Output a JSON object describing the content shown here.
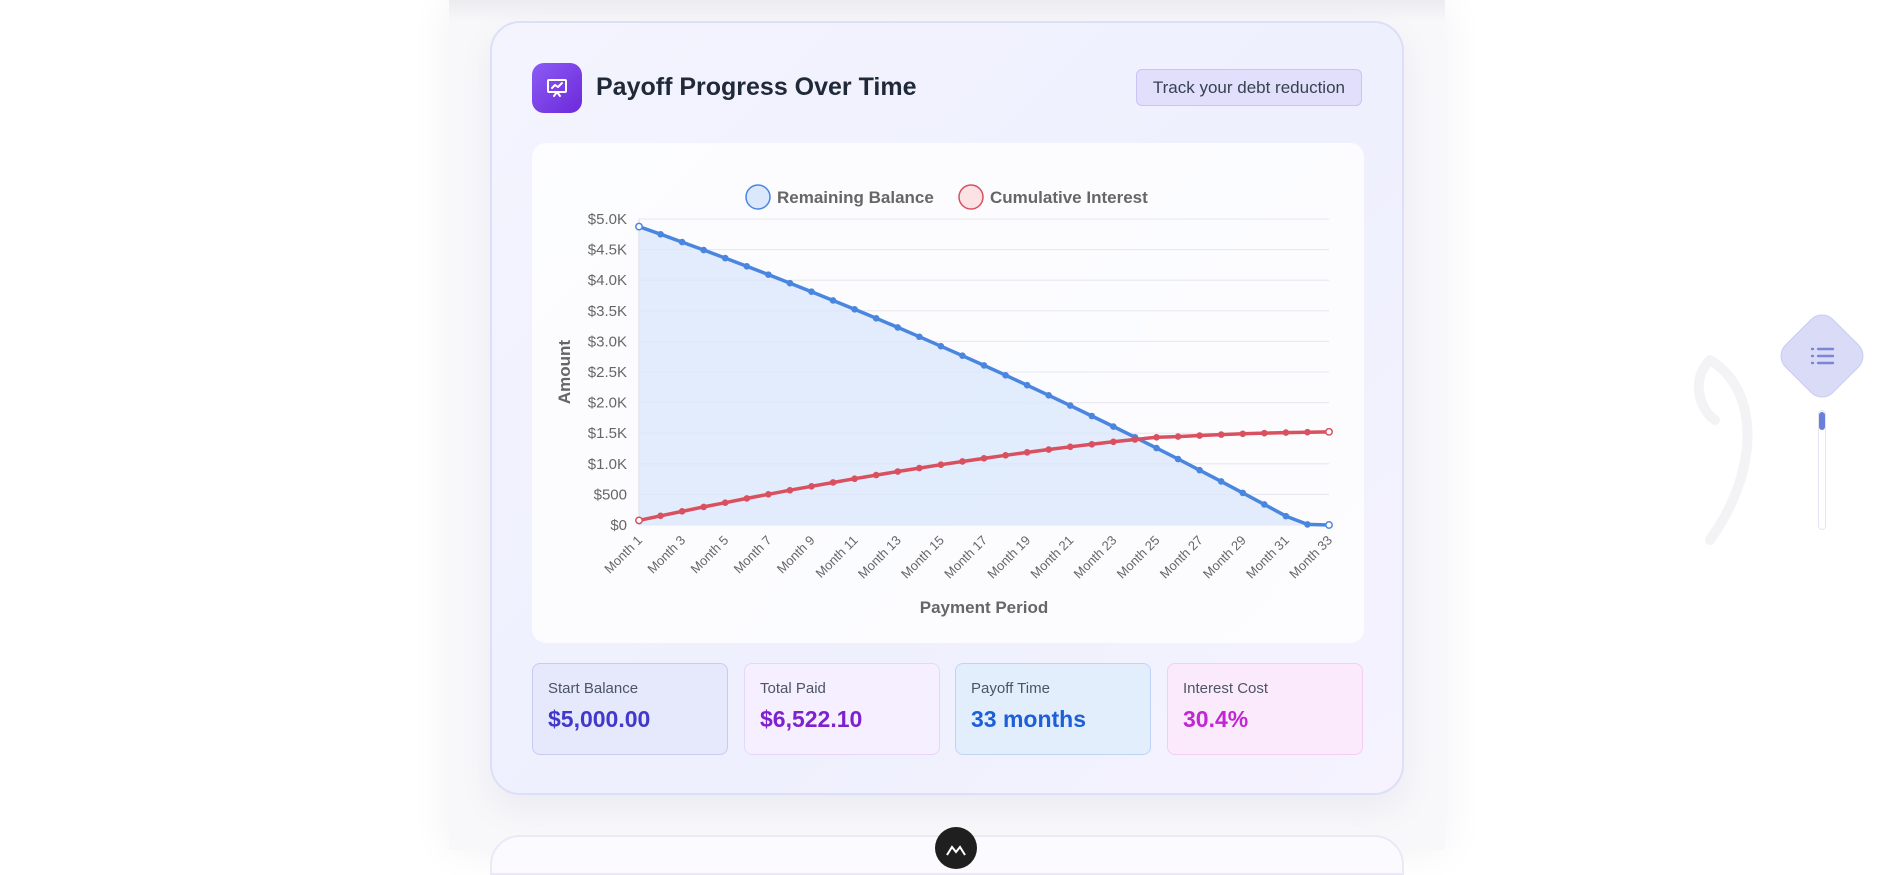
{
  "card": {
    "title": "Payoff Progress Over Time",
    "badge": "Track your debt reduction",
    "icon": "presentation-chart-icon"
  },
  "chart_data": {
    "type": "line",
    "title": "",
    "xlabel": "Payment Period",
    "ylabel": "Amount",
    "ylim": [
      0,
      5000
    ],
    "y_ticks": [
      "$0",
      "$500",
      "$1.0K",
      "$1.5K",
      "$2.0K",
      "$2.5K",
      "$3.0K",
      "$3.5K",
      "$4.0K",
      "$4.5K",
      "$5.0K"
    ],
    "y_tick_values": [
      0,
      500,
      1000,
      1500,
      2000,
      2500,
      3000,
      3500,
      4000,
      4500,
      5000
    ],
    "x_tick_labels": [
      "Month 1",
      "Month 3",
      "Month 5",
      "Month 7",
      "Month 9",
      "Month 11",
      "Month 13",
      "Month 15",
      "Month 17",
      "Month 19",
      "Month 21",
      "Month 23",
      "Month 25",
      "Month 27",
      "Month 29",
      "Month 31",
      "Month 33"
    ],
    "categories": [
      "Month 1",
      "Month 2",
      "Month 3",
      "Month 4",
      "Month 5",
      "Month 6",
      "Month 7",
      "Month 8",
      "Month 9",
      "Month 10",
      "Month 11",
      "Month 12",
      "Month 13",
      "Month 14",
      "Month 15",
      "Month 16",
      "Month 17",
      "Month 18",
      "Month 19",
      "Month 20",
      "Month 21",
      "Month 22",
      "Month 23",
      "Month 24",
      "Month 25",
      "Month 26",
      "Month 27",
      "Month 28",
      "Month 29",
      "Month 30",
      "Month 31",
      "Month 32",
      "Month 33"
    ],
    "legend_position": "top-center",
    "series": [
      {
        "name": "Remaining Balance",
        "color": "#4a86e0",
        "fill": "#dbe7fb",
        "values": [
          4876,
          4751,
          4623,
          4493,
          4361,
          4227,
          4091,
          3952,
          3812,
          3669,
          3524,
          3377,
          3228,
          3076,
          2922,
          2766,
          2608,
          2447,
          2284,
          2119,
          1951,
          1781,
          1609,
          1434,
          1257,
          1078,
          896,
          712,
          525,
          336,
          145,
          10,
          0
        ]
      },
      {
        "name": "Cumulative Interest",
        "color": "#d9505f",
        "fill": "#fbe3e5",
        "values": [
          75,
          150,
          223,
          295,
          365,
          434,
          502,
          568,
          632,
          695,
          756,
          816,
          874,
          930,
          985,
          1038,
          1089,
          1139,
          1187,
          1233,
          1277,
          1319,
          1359,
          1397,
          1433,
          1445,
          1462,
          1477,
          1490,
          1501,
          1510,
          1516,
          1522
        ]
      }
    ]
  },
  "stats": [
    {
      "label": "Start Balance",
      "value": "$5,000.00"
    },
    {
      "label": "Total Paid",
      "value": "$6,522.10"
    },
    {
      "label": "Payoff Time",
      "value": "33 months"
    },
    {
      "label": "Interest Cost",
      "value": "30.4%"
    }
  ],
  "side": {
    "toc_icon": "list-icon"
  }
}
